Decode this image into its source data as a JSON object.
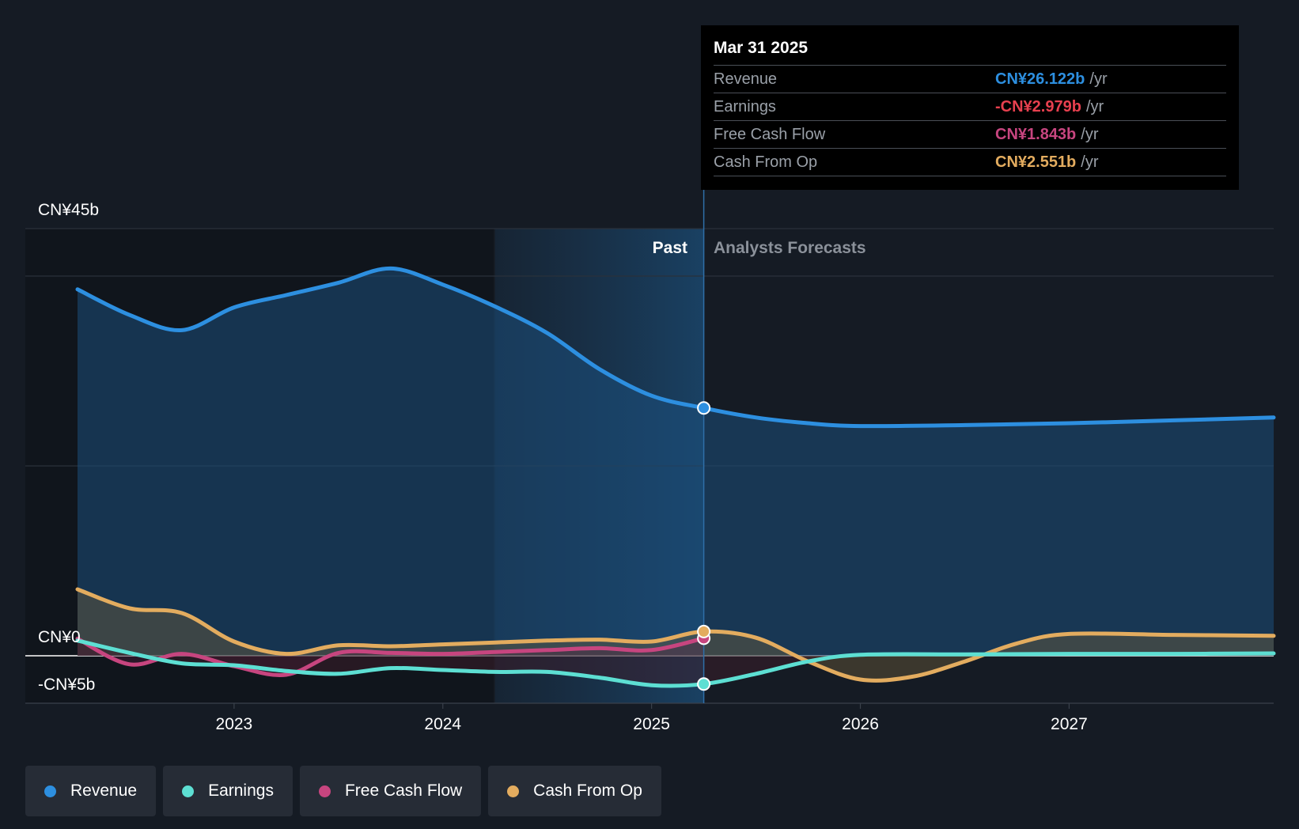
{
  "tooltip": {
    "date": "Mar 31 2025",
    "rows": [
      {
        "label": "Revenue",
        "value": "CN¥26.122b",
        "unit": "/yr",
        "color": "#2d8fe0"
      },
      {
        "label": "Earnings",
        "value": "-CN¥2.979b",
        "unit": "/yr",
        "color": "#e8404f"
      },
      {
        "label": "Free Cash Flow",
        "value": "CN¥1.843b",
        "unit": "/yr",
        "color": "#c7457f"
      },
      {
        "label": "Cash From Op",
        "value": "CN¥2.551b",
        "unit": "/yr",
        "color": "#e3ac5f"
      }
    ]
  },
  "legend": [
    {
      "label": "Revenue",
      "color": "#2d8fe0"
    },
    {
      "label": "Earnings",
      "color": "#5ddfd3"
    },
    {
      "label": "Free Cash Flow",
      "color": "#c7457f"
    },
    {
      "label": "Cash From Op",
      "color": "#e3ac5f"
    }
  ],
  "chart_data": {
    "type": "line",
    "y_tick_labels": {
      "top": "CN¥45b",
      "zero": "CN¥0",
      "bottom": "-CN¥5b"
    },
    "x_ticks": [
      "2023",
      "2024",
      "2025",
      "2026",
      "2027"
    ],
    "ylim": [
      -5,
      45
    ],
    "xlim": [
      2022.0,
      2027.98
    ],
    "grid": true,
    "past_label": "Past",
    "forecast_label": "Analysts Forecasts",
    "past_end": 2025.25,
    "shaded_start": 2024.25,
    "marker_x": 2025.25,
    "colors": {
      "revenue": "#2d8fe0",
      "earnings": "#5ddfd3",
      "free_cash_flow": "#c7457f",
      "cash_from_op": "#e3ac5f"
    },
    "series": [
      {
        "name": "Revenue",
        "points": [
          [
            2022.25,
            38.6
          ],
          [
            2022.5,
            35.9
          ],
          [
            2022.75,
            34.3
          ],
          [
            2023.0,
            36.7
          ],
          [
            2023.25,
            38.0
          ],
          [
            2023.5,
            39.3
          ],
          [
            2023.75,
            40.8
          ],
          [
            2024.0,
            39.1
          ],
          [
            2024.25,
            36.8
          ],
          [
            2024.5,
            34.0
          ],
          [
            2024.75,
            30.2
          ],
          [
            2025.0,
            27.4
          ],
          [
            2025.25,
            26.1
          ],
          [
            2025.5,
            25.1
          ],
          [
            2025.75,
            24.5
          ],
          [
            2026.0,
            24.2
          ],
          [
            2026.5,
            24.3
          ],
          [
            2027.0,
            24.5
          ],
          [
            2027.5,
            24.8
          ],
          [
            2027.98,
            25.1
          ]
        ]
      },
      {
        "name": "Earnings",
        "points": [
          [
            2022.25,
            1.6
          ],
          [
            2022.5,
            0.3
          ],
          [
            2022.75,
            -0.8
          ],
          [
            2023.0,
            -1.0
          ],
          [
            2023.25,
            -1.6
          ],
          [
            2023.5,
            -1.9
          ],
          [
            2023.75,
            -1.3
          ],
          [
            2024.0,
            -1.5
          ],
          [
            2024.25,
            -1.7
          ],
          [
            2024.5,
            -1.7
          ],
          [
            2024.75,
            -2.3
          ],
          [
            2025.0,
            -3.1
          ],
          [
            2025.25,
            -2.979
          ],
          [
            2025.5,
            -1.9
          ],
          [
            2025.75,
            -0.6
          ],
          [
            2026.0,
            0.1
          ],
          [
            2026.5,
            0.15
          ],
          [
            2027.0,
            0.2
          ],
          [
            2027.5,
            0.2
          ],
          [
            2027.98,
            0.25
          ]
        ]
      },
      {
        "name": "Free Cash Flow",
        "points": [
          [
            2022.25,
            1.8
          ],
          [
            2022.5,
            -0.9
          ],
          [
            2022.75,
            0.2
          ],
          [
            2023.0,
            -1.1
          ],
          [
            2023.25,
            -2.0
          ],
          [
            2023.5,
            0.3
          ],
          [
            2023.75,
            0.3
          ],
          [
            2024.0,
            0.2
          ],
          [
            2024.25,
            0.4
          ],
          [
            2024.5,
            0.6
          ],
          [
            2024.75,
            0.8
          ],
          [
            2025.0,
            0.6
          ],
          [
            2025.25,
            1.843
          ]
        ]
      },
      {
        "name": "Cash From Op",
        "points": [
          [
            2022.25,
            7.0
          ],
          [
            2022.5,
            5.0
          ],
          [
            2022.75,
            4.5
          ],
          [
            2023.0,
            1.5
          ],
          [
            2023.25,
            0.2
          ],
          [
            2023.5,
            1.1
          ],
          [
            2023.75,
            1.0
          ],
          [
            2024.0,
            1.2
          ],
          [
            2024.25,
            1.4
          ],
          [
            2024.5,
            1.6
          ],
          [
            2024.75,
            1.7
          ],
          [
            2025.0,
            1.5
          ],
          [
            2025.25,
            2.551
          ],
          [
            2025.5,
            1.9
          ],
          [
            2025.75,
            -0.6
          ],
          [
            2026.0,
            -2.5
          ],
          [
            2026.25,
            -2.2
          ],
          [
            2026.5,
            -0.6
          ],
          [
            2026.75,
            1.3
          ],
          [
            2027.0,
            2.3
          ],
          [
            2027.5,
            2.2
          ],
          [
            2027.98,
            2.1
          ]
        ]
      }
    ]
  }
}
